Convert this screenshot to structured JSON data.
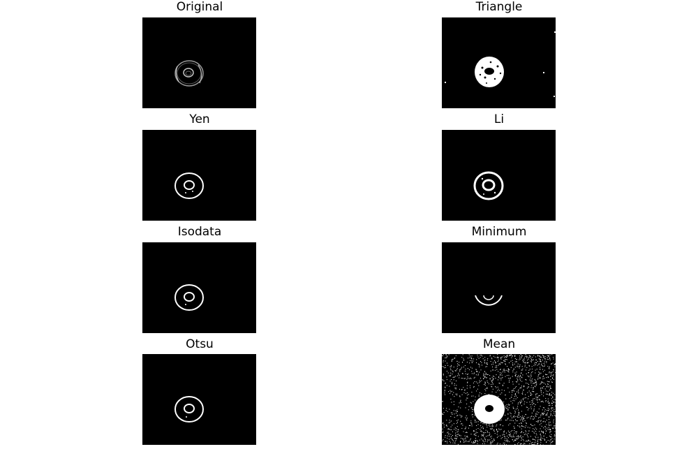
{
  "panels": [
    {
      "title": "Original"
    },
    {
      "title": "Triangle"
    },
    {
      "title": "Yen"
    },
    {
      "title": "Li"
    },
    {
      "title": "Isodata"
    },
    {
      "title": "Minimum"
    },
    {
      "title": "Otsu"
    },
    {
      "title": "Mean"
    }
  ]
}
